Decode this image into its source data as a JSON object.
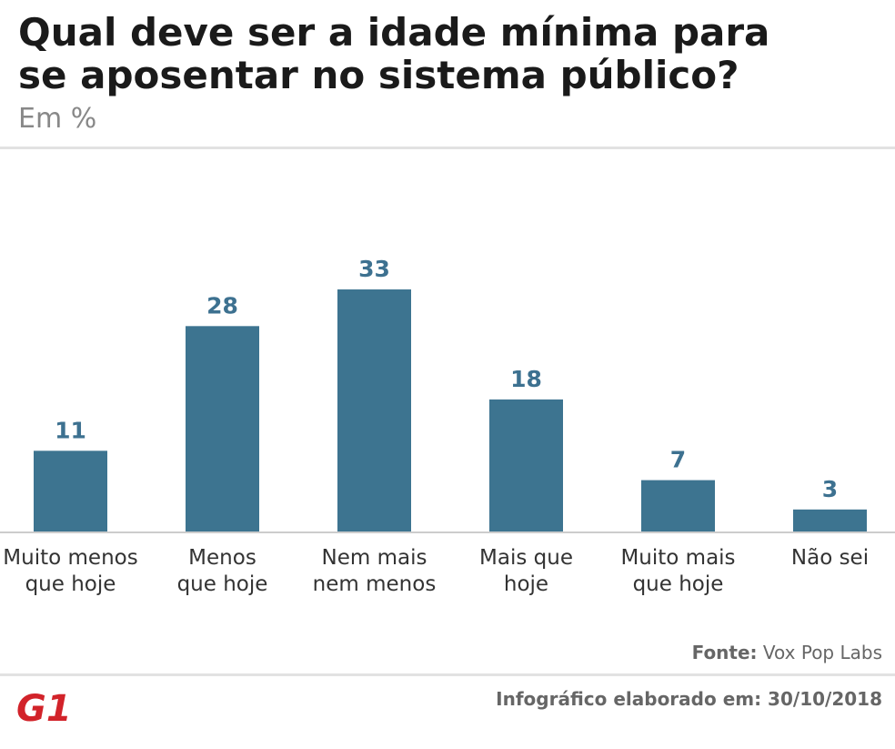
{
  "chart_data": {
    "type": "bar",
    "title": [
      "Qual deve ser a idade mínima para",
      "se aposentar no sistema público?"
    ],
    "subtitle": "Em %",
    "categories": [
      [
        "Muito menos",
        "que hoje"
      ],
      [
        "Menos",
        "que hoje"
      ],
      [
        "Nem mais",
        "nem menos"
      ],
      [
        "Mais que",
        "hoje"
      ],
      [
        "Muito mais",
        "que hoje"
      ],
      [
        "Não sei"
      ]
    ],
    "values": [
      11,
      28,
      33,
      18,
      7,
      3
    ],
    "color": "#3d7490",
    "source_label": "Fonte:",
    "source": "Vox Pop Labs",
    "footer": "Infográfico elaborado em: 30/10/2018",
    "logo": "G1"
  }
}
